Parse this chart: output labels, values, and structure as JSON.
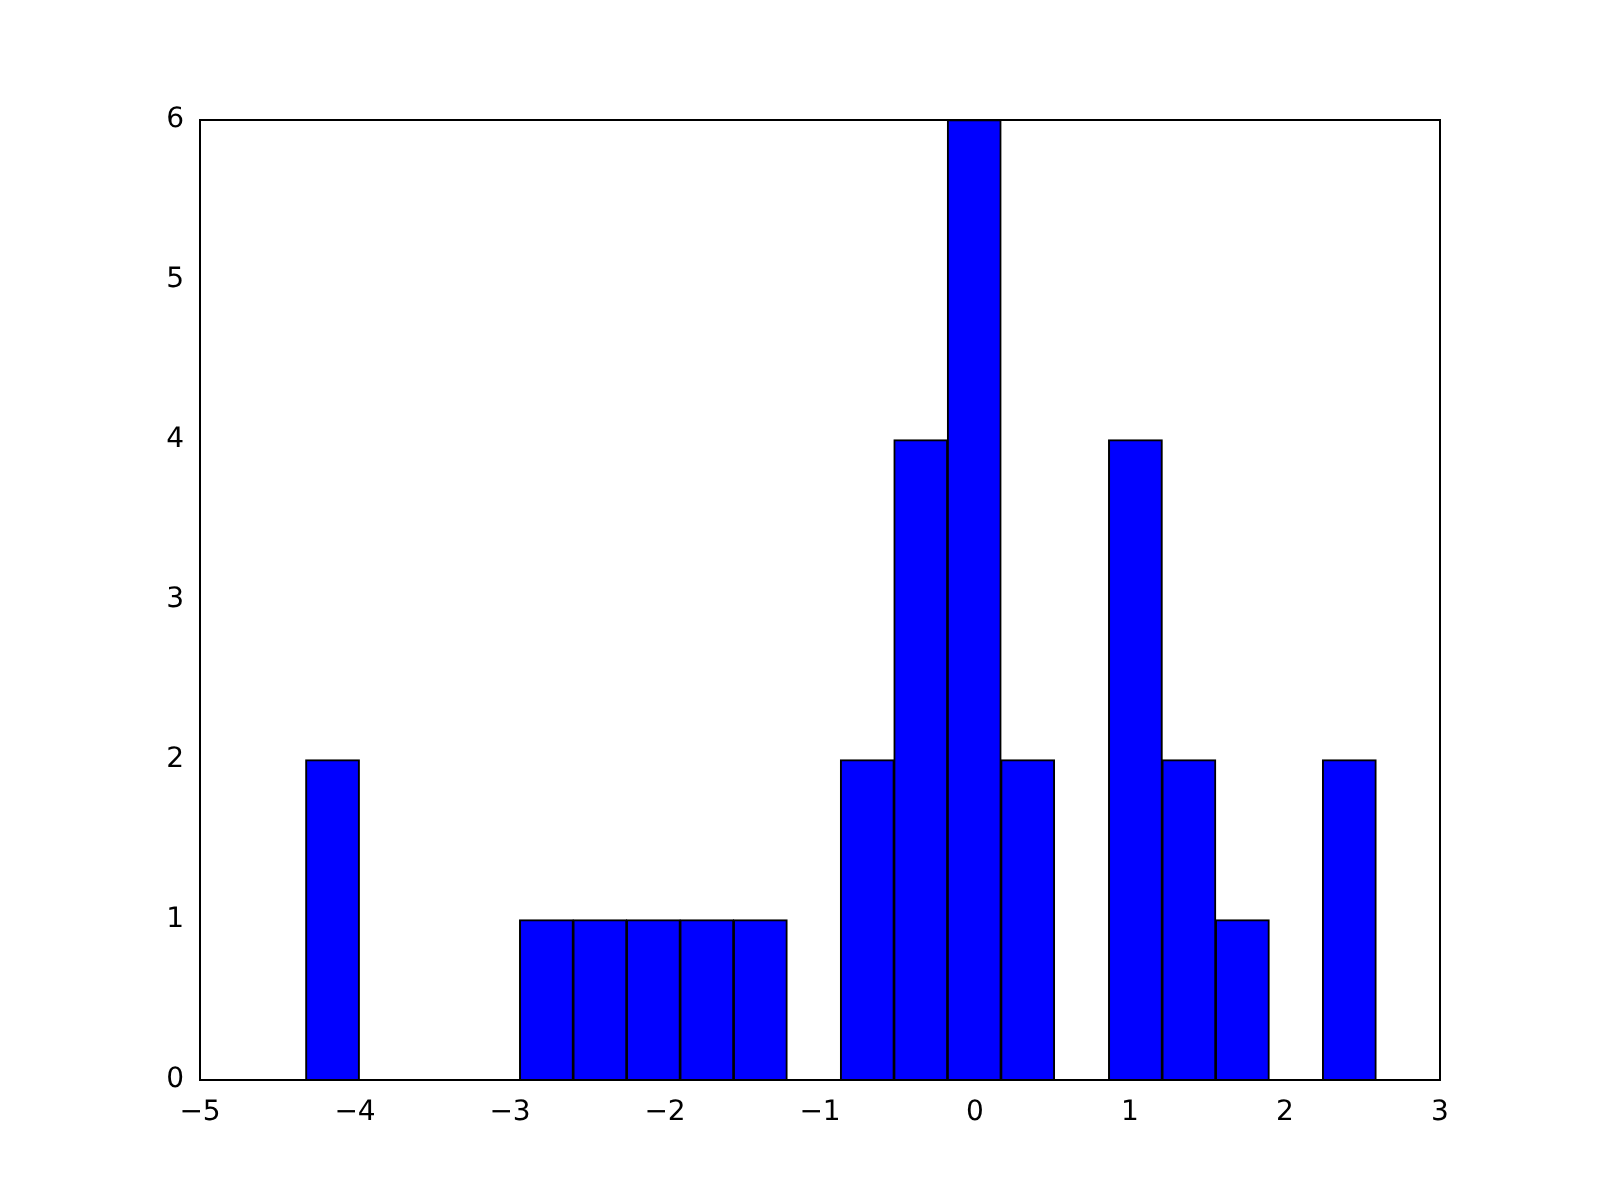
{
  "chart_data": {
    "type": "histogram",
    "bins": [
      -4.32,
      -3.97,
      -3.63,
      -3.28,
      -2.94,
      -2.59,
      -2.25,
      -1.9,
      -1.56,
      -1.21,
      -0.87,
      -0.52,
      -0.18,
      0.17,
      0.51,
      0.86,
      1.21,
      1.55,
      1.9,
      2.24,
      2.59
    ],
    "values": [
      2,
      0,
      0,
      0,
      1,
      1,
      1,
      1,
      1,
      0,
      2,
      4,
      6,
      2,
      0,
      4,
      2,
      1,
      0,
      2
    ],
    "color": "#0000ff",
    "xlim": [
      -5,
      3
    ],
    "xticks": [
      {
        "value": -5,
        "label": "−5"
      },
      {
        "value": -4,
        "label": "−4"
      },
      {
        "value": -3,
        "label": "−3"
      },
      {
        "value": -2,
        "label": "−2"
      },
      {
        "value": -1,
        "label": "−1"
      },
      0,
      1,
      2,
      3
    ],
    "ylim": [
      0,
      6
    ],
    "yticks": [
      0,
      1,
      2,
      3,
      4,
      5,
      6
    ],
    "grid": false
  }
}
